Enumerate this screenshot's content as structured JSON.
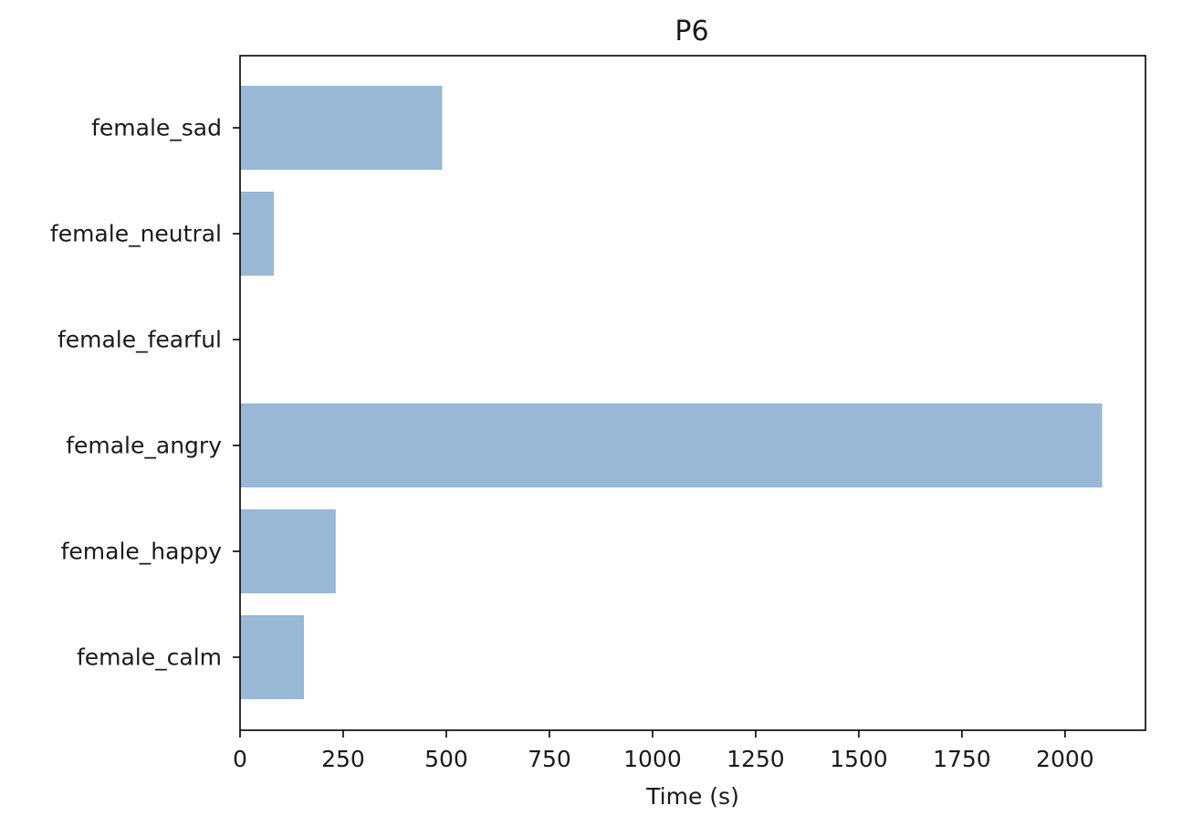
{
  "chart_data": {
    "type": "bar",
    "orientation": "horizontal",
    "title": "P6",
    "xlabel": "Time (s)",
    "ylabel": "",
    "categories": [
      "female_calm",
      "female_happy",
      "female_angry",
      "female_fearful",
      "female_neutral",
      "female_sad"
    ],
    "values": [
      155,
      232,
      2090,
      0,
      82,
      490
    ],
    "xlim": [
      0,
      2195
    ],
    "xticks": [
      0,
      250,
      500,
      750,
      1000,
      1250,
      1500,
      1750,
      2000
    ],
    "xtick_labels": [
      "0",
      "250",
      "500",
      "750",
      "1000",
      "1250",
      "1500",
      "1750",
      "2000"
    ],
    "grid": false,
    "legend": "none",
    "colors": {
      "bar": "#98b8d6",
      "axes": "#000000",
      "text": "#1a1a1a"
    }
  }
}
